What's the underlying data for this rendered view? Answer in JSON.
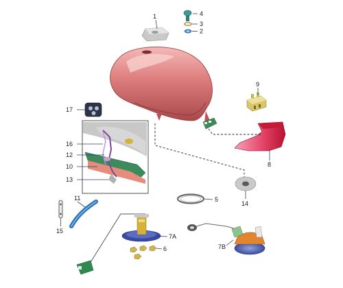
{
  "diagram": {
    "callouts": [
      {
        "id": "p1",
        "label": "1"
      },
      {
        "id": "p2",
        "label": "2"
      },
      {
        "id": "p3",
        "label": "3"
      },
      {
        "id": "p4",
        "label": "4"
      },
      {
        "id": "p5",
        "label": "5"
      },
      {
        "id": "p6",
        "label": "6"
      },
      {
        "id": "p7a",
        "label": "7A"
      },
      {
        "id": "p7b",
        "label": "7B"
      },
      {
        "id": "p8",
        "label": "8"
      },
      {
        "id": "p9",
        "label": "9"
      },
      {
        "id": "p10",
        "label": "10"
      },
      {
        "id": "p11",
        "label": "11"
      },
      {
        "id": "p12",
        "label": "12"
      },
      {
        "id": "p13",
        "label": "13"
      },
      {
        "id": "p14",
        "label": "14"
      },
      {
        "id": "p15",
        "label": "15"
      },
      {
        "id": "p16",
        "label": "16"
      },
      {
        "id": "p17",
        "label": "17"
      }
    ],
    "colors": {
      "tank": "#d9797a",
      "tank_dark": "#a94a4c",
      "tank_light": "#f2b8b6",
      "leader": "#2a3f6e",
      "pad": "#d8203a",
      "pad_light": "#f08aa2",
      "blue": "#3b86c9",
      "pump_plate": "#3a4aa0",
      "gold": "#c9b04a",
      "green": "#2e7f4f",
      "orange": "#e3842e"
    }
  }
}
